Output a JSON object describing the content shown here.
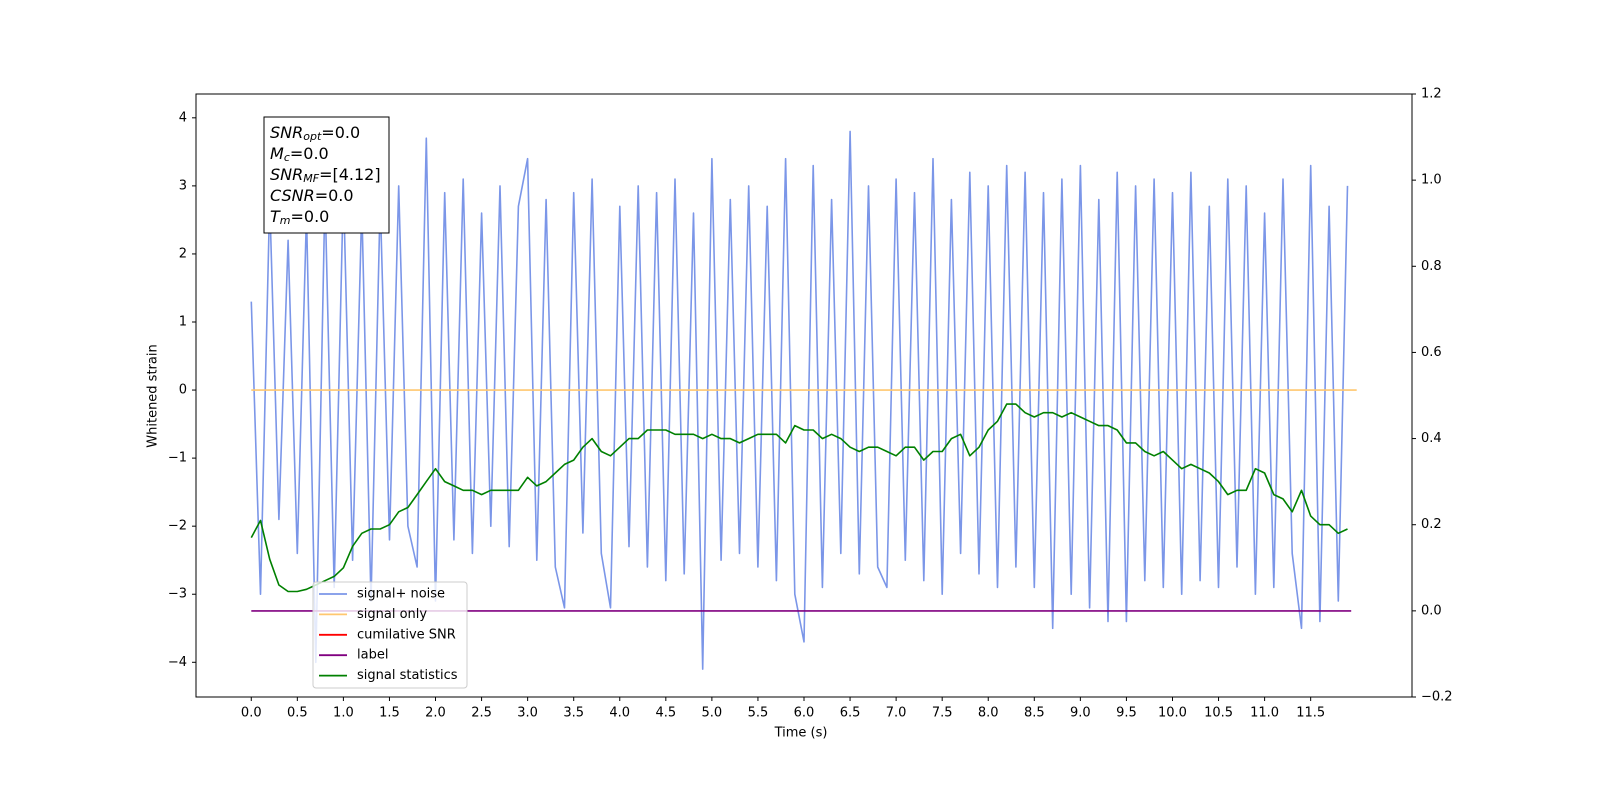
{
  "chart_data": {
    "type": "line",
    "xlabel": "Time (s)",
    "ylabel": "Whitened strain",
    "x": [
      0.0,
      0.1,
      0.2,
      0.3,
      0.4,
      0.5,
      0.6,
      0.7,
      0.8,
      0.9,
      1.0,
      1.1,
      1.2,
      1.3,
      1.4,
      1.5,
      1.6,
      1.7,
      1.8,
      1.9,
      2.0,
      2.1,
      2.2,
      2.3,
      2.4,
      2.5,
      2.6,
      2.7,
      2.8,
      2.9,
      3.0,
      3.1,
      3.2,
      3.3,
      3.4,
      3.5,
      3.6,
      3.7,
      3.8,
      3.9,
      4.0,
      4.1,
      4.2,
      4.3,
      4.4,
      4.5,
      4.6,
      4.7,
      4.8,
      4.9,
      5.0,
      5.1,
      5.2,
      5.3,
      5.4,
      5.5,
      5.6,
      5.7,
      5.8,
      5.9,
      6.0,
      6.1,
      6.2,
      6.3,
      6.4,
      6.5,
      6.6,
      6.7,
      6.8,
      6.9,
      7.0,
      7.1,
      7.2,
      7.3,
      7.4,
      7.5,
      7.6,
      7.7,
      7.8,
      7.9,
      8.0,
      8.1,
      8.2,
      8.3,
      8.4,
      8.5,
      8.6,
      8.7,
      8.8,
      8.9,
      9.0,
      9.1,
      9.2,
      9.3,
      9.4,
      9.5,
      9.6,
      9.7,
      9.8,
      9.9,
      10.0,
      10.1,
      10.2,
      10.3,
      10.4,
      10.5,
      10.6,
      10.7,
      10.8,
      10.9,
      11.0,
      11.1,
      11.2,
      11.3,
      11.4,
      11.5,
      11.6,
      11.7,
      11.8,
      11.9
    ],
    "series": [
      {
        "name": "signal+ noise",
        "color": "#7b96e8",
        "values": [
          1.3,
          -3.0,
          2.8,
          -1.9,
          2.2,
          -2.4,
          2.6,
          -4.0,
          2.9,
          -2.9,
          3.0,
          -2.5,
          2.7,
          -3.1,
          2.8,
          -2.2,
          3.0,
          -2.0,
          -2.6,
          3.7,
          -3.1,
          2.9,
          -2.2,
          3.1,
          -2.4,
          2.6,
          -2.0,
          3.0,
          -2.3,
          2.7,
          3.4,
          -2.5,
          2.8,
          -2.6,
          -3.2,
          2.9,
          -2.1,
          3.1,
          -2.4,
          -3.2,
          2.7,
          -2.3,
          3.0,
          -2.6,
          2.9,
          -2.8,
          3.1,
          -2.7,
          2.6,
          -4.1,
          3.4,
          -2.5,
          2.8,
          -2.4,
          3.0,
          -2.6,
          2.7,
          -2.8,
          3.4,
          -3.0,
          -3.7,
          3.3,
          -2.9,
          2.8,
          -2.4,
          3.8,
          -2.7,
          3.0,
          -2.6,
          -2.9,
          3.1,
          -2.5,
          2.9,
          -2.8,
          3.4,
          -3.0,
          2.8,
          -2.4,
          3.2,
          -2.7,
          3.0,
          -2.9,
          3.3,
          -2.6,
          3.2,
          -2.9,
          2.9,
          -3.5,
          3.1,
          -3.0,
          3.3,
          -3.2,
          2.8,
          -3.4,
          3.2,
          -3.4,
          3.0,
          -2.8,
          3.1,
          -2.9,
          2.9,
          -3.0,
          3.2,
          -2.8,
          2.7,
          -2.9,
          3.1,
          -2.6,
          3.0,
          -3.0,
          2.6,
          -2.9,
          3.1,
          -2.4,
          -3.5,
          3.3,
          -3.4,
          2.7,
          -3.1,
          3.0
        ]
      },
      {
        "name": "signal only",
        "color": "#ffc76f",
        "x": [
          0.0,
          12.0
        ],
        "values": [
          0,
          0
        ]
      },
      {
        "name": "cumilative SNR",
        "color": "#ff0000",
        "x": [],
        "values": []
      },
      {
        "name": "label",
        "color": "#800080",
        "axis": "y2",
        "x": [
          0.0,
          11.94
        ],
        "values": [
          0,
          0
        ]
      },
      {
        "name": "signal statistics",
        "color": "#008000",
        "axis": "y2",
        "values": [
          0.17,
          0.21,
          0.12,
          0.06,
          0.045,
          0.045,
          0.05,
          0.06,
          0.07,
          0.08,
          0.1,
          0.15,
          0.18,
          0.19,
          0.19,
          0.2,
          0.23,
          0.24,
          0.27,
          0.3,
          0.33,
          0.3,
          0.29,
          0.28,
          0.28,
          0.27,
          0.28,
          0.28,
          0.28,
          0.28,
          0.31,
          0.29,
          0.3,
          0.32,
          0.34,
          0.35,
          0.38,
          0.4,
          0.37,
          0.36,
          0.38,
          0.4,
          0.4,
          0.42,
          0.42,
          0.42,
          0.41,
          0.41,
          0.41,
          0.4,
          0.41,
          0.4,
          0.4,
          0.39,
          0.4,
          0.41,
          0.41,
          0.41,
          0.39,
          0.43,
          0.42,
          0.42,
          0.4,
          0.41,
          0.4,
          0.38,
          0.37,
          0.38,
          0.38,
          0.37,
          0.36,
          0.38,
          0.38,
          0.35,
          0.37,
          0.37,
          0.4,
          0.41,
          0.36,
          0.38,
          0.42,
          0.44,
          0.48,
          0.48,
          0.46,
          0.45,
          0.46,
          0.46,
          0.45,
          0.46,
          0.45,
          0.44,
          0.43,
          0.43,
          0.42,
          0.39,
          0.39,
          0.37,
          0.36,
          0.37,
          0.35,
          0.33,
          0.34,
          0.33,
          0.32,
          0.3,
          0.27,
          0.28,
          0.28,
          0.33,
          0.32,
          0.27,
          0.26,
          0.23,
          0.28,
          0.22,
          0.2,
          0.2,
          0.18,
          0.19
        ]
      }
    ],
    "xlim": [
      -0.6,
      12.6
    ],
    "xticks": [
      {
        "value": 0,
        "label": "0.0"
      },
      0.5,
      {
        "value": 1,
        "label": "1.0"
      },
      1.5,
      {
        "value": 2,
        "label": "2.0"
      },
      2.5,
      {
        "value": 3,
        "label": "3.0"
      },
      3.5,
      {
        "value": 4,
        "label": "4.0"
      },
      4.5,
      {
        "value": 5,
        "label": "5.0"
      },
      5.5,
      {
        "value": 6,
        "label": "6.0"
      },
      6.5,
      {
        "value": 7,
        "label": "7.0"
      },
      7.5,
      {
        "value": 8,
        "label": "8.0"
      },
      8.5,
      {
        "value": 9,
        "label": "9.0"
      },
      9.5,
      {
        "value": 10,
        "label": "10.0"
      },
      10.5,
      {
        "value": 11,
        "label": "11.0"
      },
      11.5
    ],
    "ylim": [
      -4.51,
      4.35
    ],
    "yticks": [
      {
        "value": -4,
        "label": "−4"
      },
      {
        "value": -3,
        "label": "−3"
      },
      {
        "value": -2,
        "label": "−2"
      },
      {
        "value": -1,
        "label": "−1"
      },
      0,
      1,
      2,
      3,
      4
    ],
    "y2lim": [
      -0.2,
      1.2
    ],
    "y2ticks": [
      {
        "value": -0.2,
        "label": "−0.2"
      },
      {
        "value": 0,
        "label": "0.0"
      },
      0.2,
      0.4,
      0.6,
      0.8,
      {
        "value": 1,
        "label": "1.0"
      },
      1.2
    ],
    "legend": "lower left",
    "annotation": [
      {
        "symbol": "SNR",
        "sub": "opt",
        "text": "=0.0"
      },
      {
        "symbol": "M",
        "sub": "c",
        "text": "=0.0"
      },
      {
        "symbol": "SNR",
        "sub": "MF",
        "text": "=[4.12]"
      },
      {
        "symbol": "CSNR",
        "text": "=0.0"
      },
      {
        "symbol": "T",
        "sub": "m",
        "text": "=0.0"
      }
    ]
  }
}
